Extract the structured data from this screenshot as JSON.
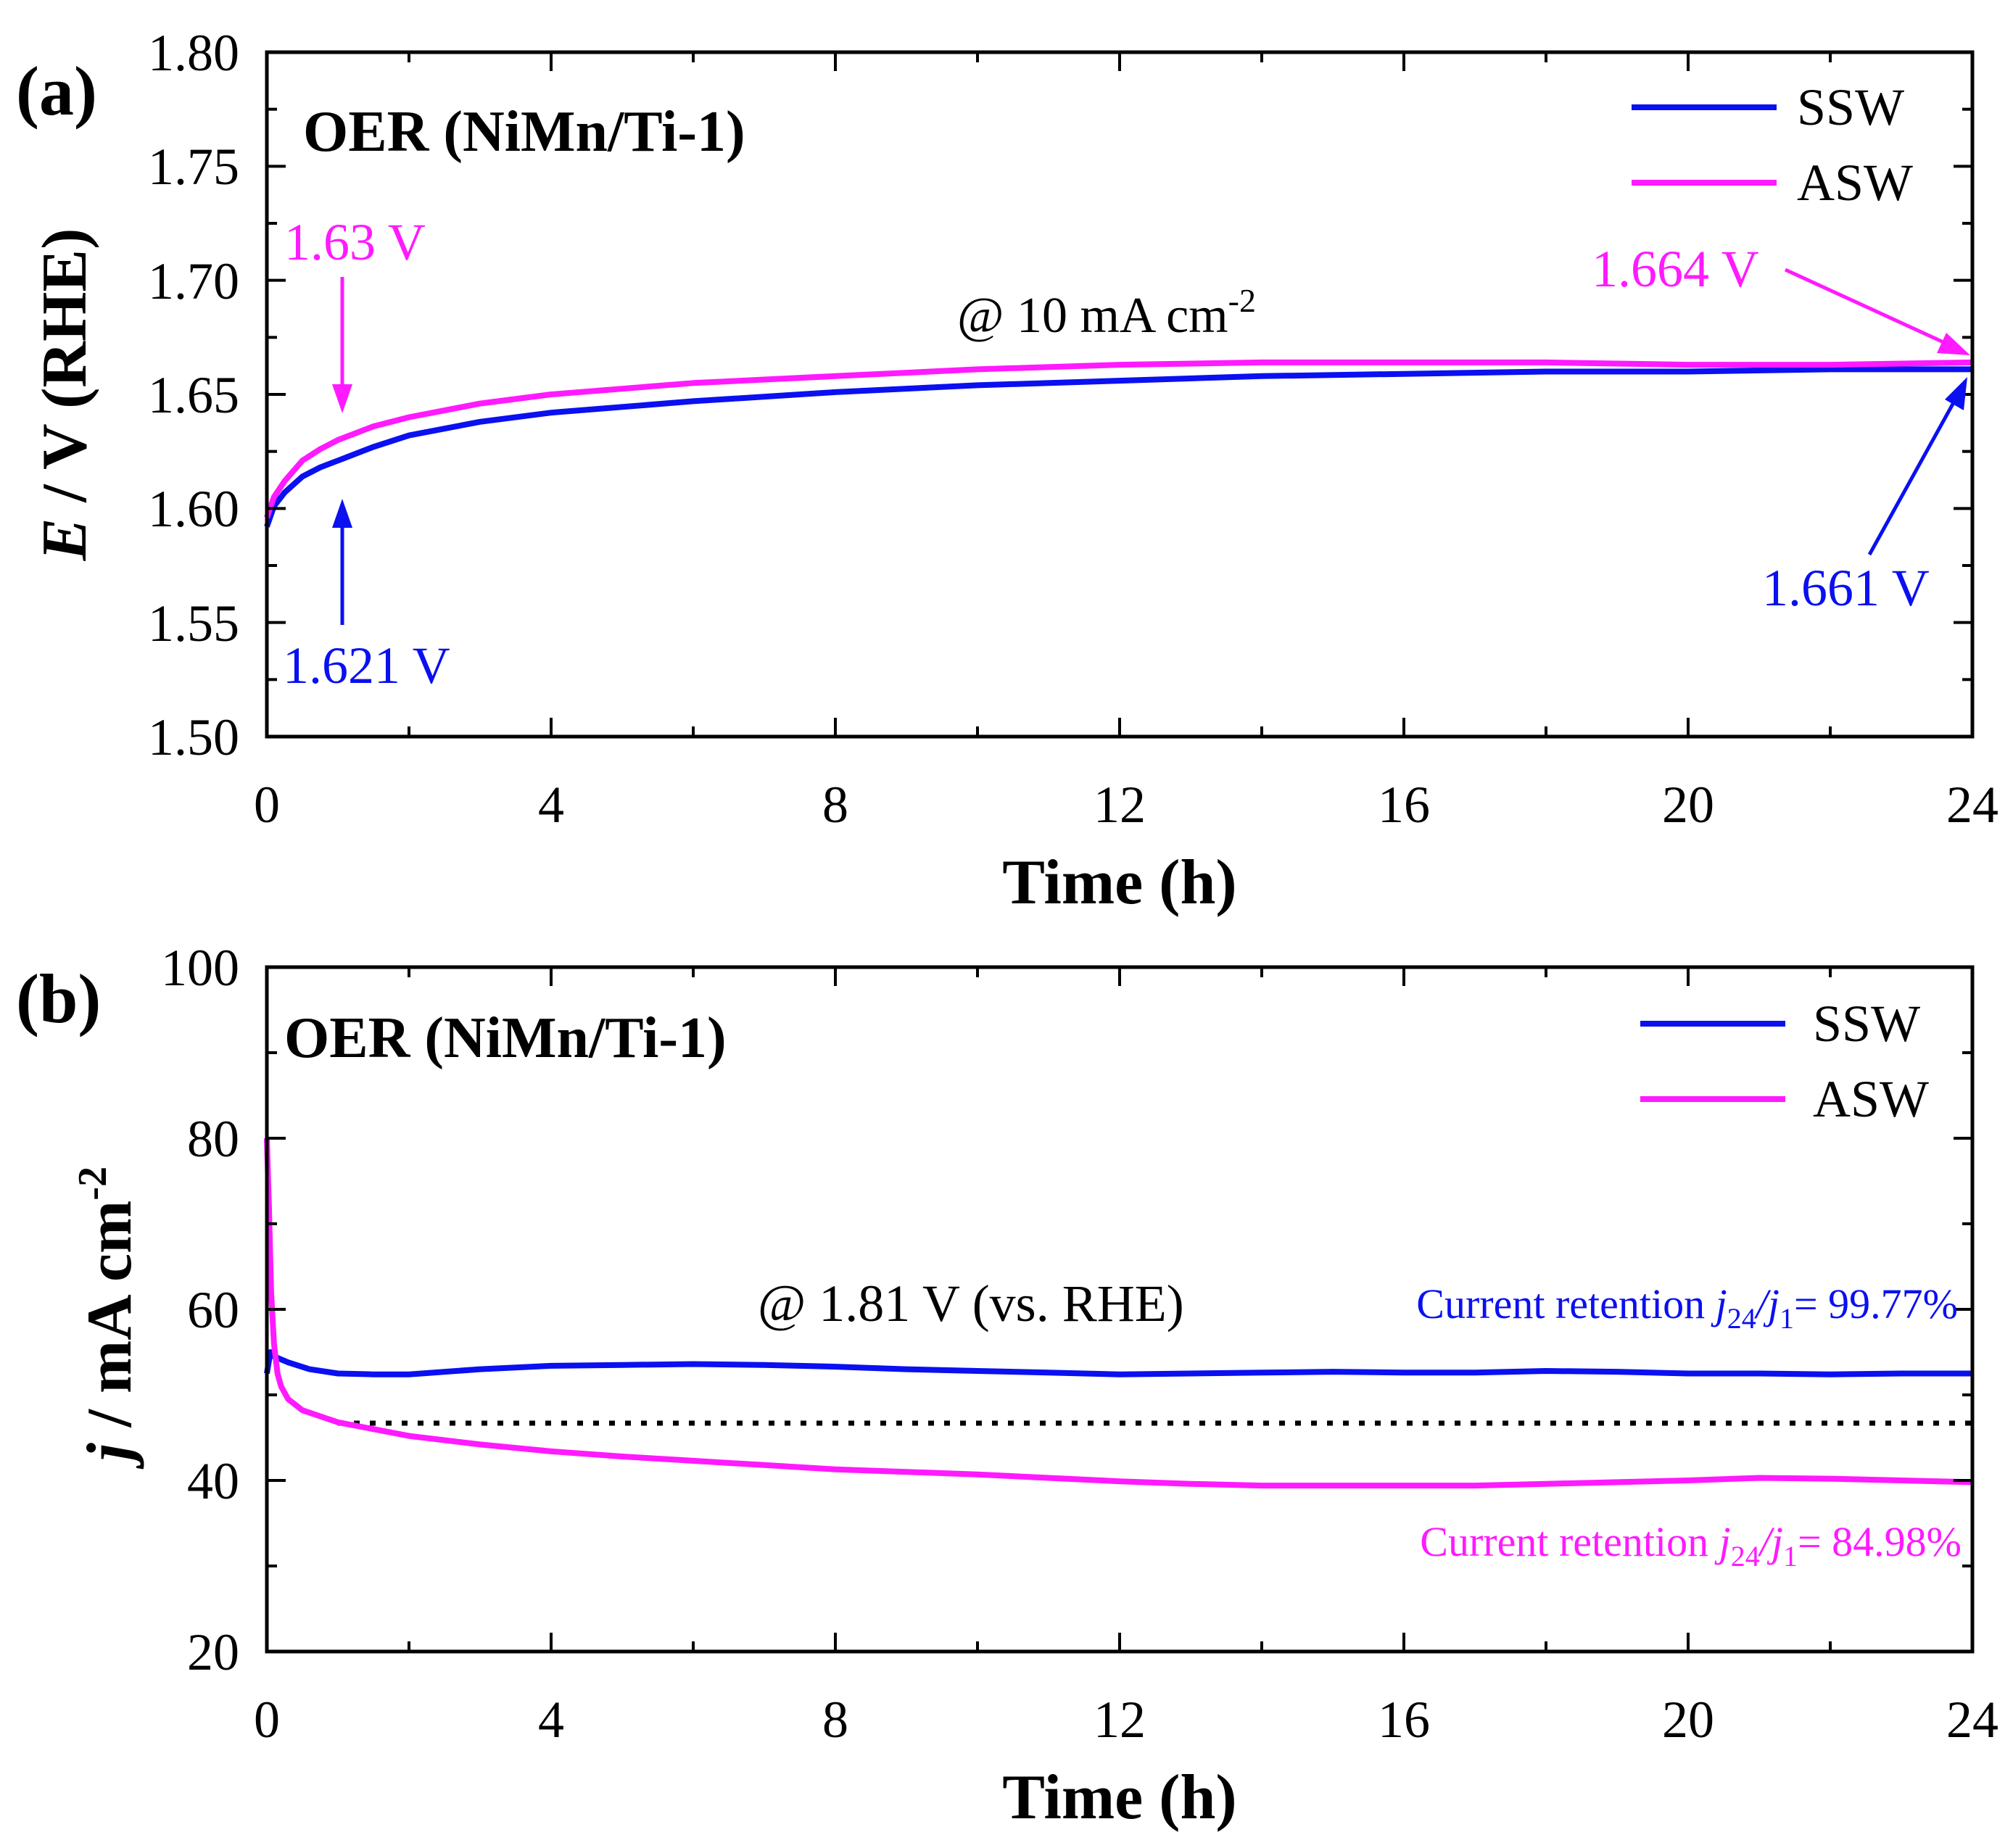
{
  "colors": {
    "ssw": "#0a10f0",
    "asw": "#ff1aff",
    "axis": "#000000",
    "reference": "#000000"
  },
  "chart_data": [
    {
      "type": "line",
      "panel_label": "(a)",
      "title": "OER (NiMn/Ti-1)",
      "condition": "@ 10 mA cm",
      "condition_sup": "-2",
      "xlabel": "Time (h)",
      "ylabel_italic": "E",
      "ylabel_rest": " / V (RHE)",
      "xlim": [
        0,
        24
      ],
      "ylim": [
        1.5,
        1.8
      ],
      "xticks": [
        "0",
        "4",
        "8",
        "12",
        "16",
        "20",
        "24"
      ],
      "yticks": [
        "1.50",
        "1.55",
        "1.60",
        "1.65",
        "1.70",
        "1.75",
        "1.80"
      ],
      "legend": [
        "SSW",
        "ASW"
      ],
      "series": [
        {
          "name": "SSW",
          "color_key": "ssw",
          "x": [
            0,
            0.1,
            0.25,
            0.5,
            0.75,
            1,
            1.5,
            2,
            3,
            4,
            6,
            8,
            10,
            12,
            14,
            16,
            18,
            20,
            22,
            24
          ],
          "y": [
            1.592,
            1.601,
            1.607,
            1.614,
            1.618,
            1.621,
            1.627,
            1.632,
            1.638,
            1.642,
            1.647,
            1.651,
            1.654,
            1.656,
            1.658,
            1.659,
            1.66,
            1.66,
            1.661,
            1.661
          ]
        },
        {
          "name": "ASW",
          "color_key": "asw",
          "x": [
            0,
            0.1,
            0.25,
            0.5,
            0.75,
            1,
            1.5,
            2,
            3,
            4,
            6,
            8,
            10,
            12,
            14,
            16,
            18,
            20,
            22,
            24
          ],
          "y": [
            1.596,
            1.605,
            1.612,
            1.621,
            1.626,
            1.63,
            1.636,
            1.64,
            1.646,
            1.65,
            1.655,
            1.658,
            1.661,
            1.663,
            1.664,
            1.664,
            1.664,
            1.663,
            1.663,
            1.664
          ]
        }
      ],
      "annotations": [
        {
          "text": "1.63 V",
          "color_key": "asw",
          "arrow_to": [
            1,
            1.63
          ]
        },
        {
          "text": "1.621 V",
          "color_key": "ssw",
          "arrow_to": [
            1,
            1.621
          ]
        },
        {
          "text": "1.664 V",
          "color_key": "asw",
          "arrow_to": [
            24,
            1.664
          ]
        },
        {
          "text": "1.661 V",
          "color_key": "ssw",
          "arrow_to": [
            24,
            1.661
          ]
        }
      ]
    },
    {
      "type": "line",
      "panel_label": "(b)",
      "title": "OER (NiMn/Ti-1)",
      "condition": "@ 1.81 V (vs. RHE)",
      "xlabel": "Time (h)",
      "ylabel_italic": "j",
      "ylabel_rest": " / mA cm",
      "ylabel_sup": "-2",
      "xlim": [
        0,
        24
      ],
      "ylim": [
        20,
        100
      ],
      "xticks": [
        "0",
        "4",
        "8",
        "12",
        "16",
        "20",
        "24"
      ],
      "yticks": [
        "20",
        "40",
        "60",
        "80",
        "100"
      ],
      "legend": [
        "SSW",
        "ASW"
      ],
      "reference_line_y": 46.7,
      "series": [
        {
          "name": "SSW",
          "color_key": "ssw",
          "x": [
            0,
            0.05,
            0.1,
            0.3,
            0.6,
            1,
            1.5,
            2,
            3,
            4,
            5,
            6,
            7,
            8,
            9,
            10,
            11,
            12,
            13,
            14,
            15,
            16,
            17,
            18,
            19,
            20,
            21,
            22,
            23,
            24
          ],
          "y": [
            52.5,
            55,
            54.5,
            53.8,
            53,
            52.5,
            52.4,
            52.4,
            53,
            53.4,
            53.5,
            53.6,
            53.5,
            53.3,
            53,
            52.8,
            52.6,
            52.4,
            52.5,
            52.6,
            52.7,
            52.6,
            52.6,
            52.8,
            52.7,
            52.5,
            52.5,
            52.4,
            52.5,
            52.5
          ]
        },
        {
          "name": "ASW",
          "color_key": "asw",
          "x": [
            0,
            0.03,
            0.06,
            0.1,
            0.15,
            0.2,
            0.3,
            0.5,
            0.75,
            1,
            1.5,
            2,
            3,
            4,
            5,
            6,
            7,
            8,
            9,
            10,
            11,
            12,
            13,
            14,
            15,
            16,
            17,
            18,
            19,
            20,
            21,
            22,
            23,
            24
          ],
          "y": [
            80,
            72,
            62,
            56,
            52.5,
            51,
            49.5,
            48.2,
            47.5,
            46.8,
            46,
            45.2,
            44.2,
            43.4,
            42.8,
            42.3,
            41.8,
            41.3,
            41,
            40.7,
            40.3,
            39.9,
            39.6,
            39.4,
            39.4,
            39.4,
            39.4,
            39.6,
            39.8,
            40,
            40.3,
            40.2,
            40,
            39.8
          ]
        }
      ],
      "retention_annotations": [
        {
          "color_key": "ssw",
          "prefix": "Current retention ",
          "j": "j",
          "sub24": "24",
          "slash": "/",
          "j1": "j",
          "sub1": "1",
          "value": "= 99.77%"
        },
        {
          "color_key": "asw",
          "prefix": "Current retention ",
          "j": "j",
          "sub24": "24",
          "slash": "/",
          "j1": "j",
          "sub1": "1",
          "value": "= 84.98%"
        }
      ]
    }
  ]
}
